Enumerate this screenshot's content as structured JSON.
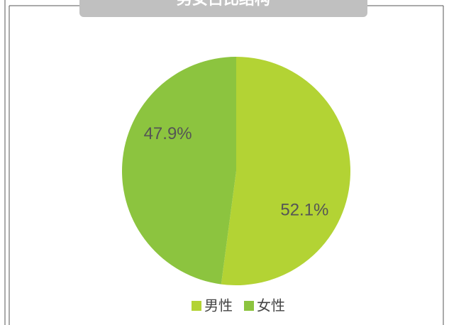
{
  "chart_data": {
    "type": "pie",
    "title": "男女占比结构",
    "categories": [
      "男性",
      "女性"
    ],
    "values": [
      52.1,
      47.9
    ],
    "value_labels": [
      "52.1%",
      "47.9%"
    ],
    "colors": [
      "#b3d334",
      "#8cc43f"
    ],
    "legend": "bottom"
  }
}
